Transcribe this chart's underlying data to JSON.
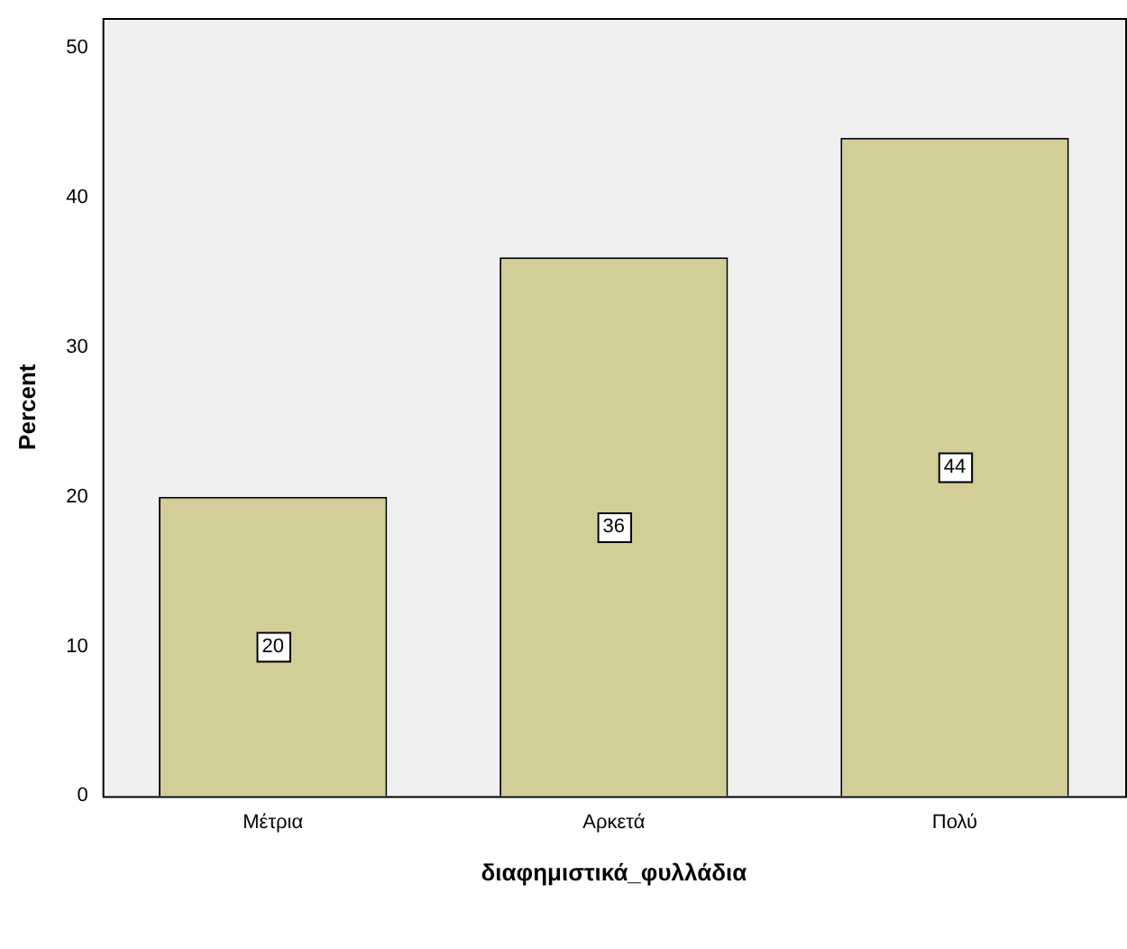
{
  "chart_data": {
    "type": "bar",
    "xlabel": "διαφημιστικά_φυλλάδια",
    "ylabel": "Percent",
    "categories": [
      "Μέτρια",
      "Αρκετά",
      "Πολύ"
    ],
    "values": [
      20,
      36,
      44
    ],
    "color": "#d3ce97",
    "ylim": [
      0,
      52
    ],
    "yticks": [
      0,
      10,
      20,
      30,
      40,
      50
    ],
    "grid": false,
    "data_labels": true
  }
}
